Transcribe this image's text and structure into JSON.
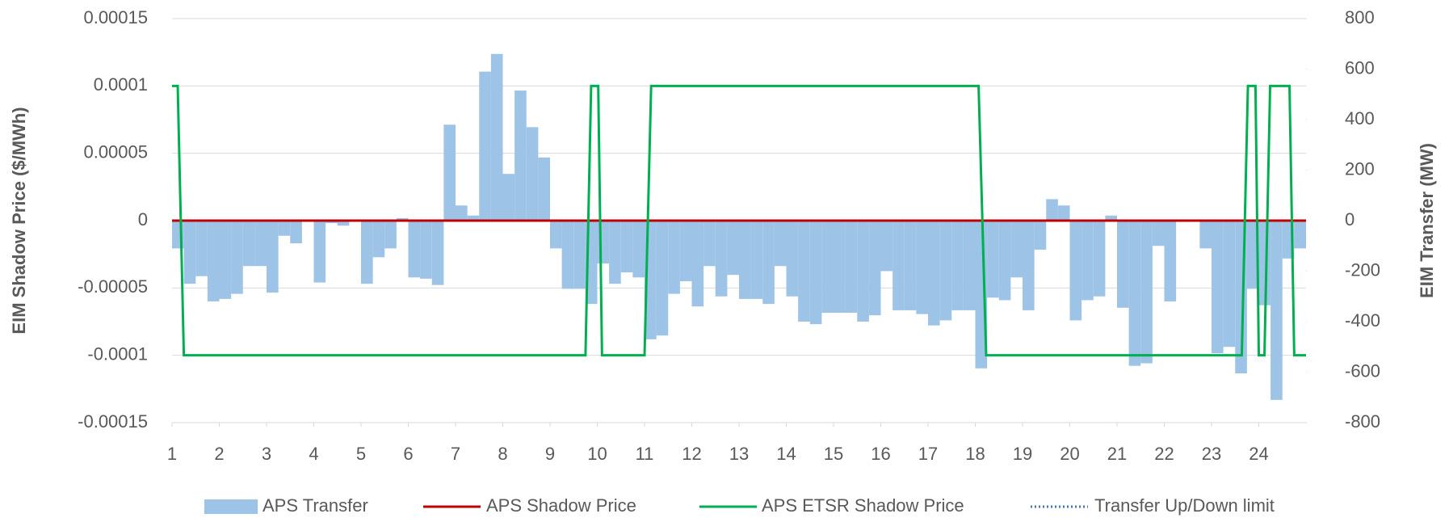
{
  "chart_data": {
    "type": "bar",
    "y_label": "EIM Shadow  Price ($/MWh)",
    "y2_label": "EIM Transfer (MW)",
    "xlim": [
      1,
      25
    ],
    "xticks": [
      1,
      2,
      3,
      4,
      5,
      6,
      7,
      8,
      9,
      10,
      11,
      12,
      13,
      14,
      15,
      16,
      17,
      18,
      19,
      20,
      21,
      22,
      23,
      24
    ],
    "ylim": [
      -0.00015,
      0.00015
    ],
    "yticks": [
      -0.00015,
      -0.0001,
      -5e-05,
      0,
      5e-05,
      0.0001,
      0.00015
    ],
    "y2lim": [
      -800,
      800
    ],
    "y2ticks": [
      -800,
      -600,
      -400,
      -200,
      0,
      200,
      400,
      600,
      800
    ],
    "grid": true,
    "legend": "bottom",
    "series": [
      {
        "name": "APS Transfer",
        "type": "bar",
        "axis": "y2",
        "color": "#9dc3e6",
        "x": [
          1,
          1.25,
          1.5,
          1.75,
          2,
          2.25,
          2.5,
          2.75,
          3,
          3.25,
          3.5,
          3.75,
          4,
          4.25,
          4.5,
          4.75,
          5,
          5.25,
          5.5,
          5.75,
          6,
          6.25,
          6.5,
          6.75,
          7,
          7.25,
          7.5,
          7.75,
          8,
          8.25,
          8.5,
          8.75,
          9,
          9.25,
          9.5,
          9.75,
          10,
          10.25,
          10.5,
          10.75,
          11,
          11.25,
          11.5,
          11.75,
          12,
          12.25,
          12.5,
          12.75,
          13,
          13.25,
          13.5,
          13.75,
          14,
          14.25,
          14.5,
          14.75,
          15,
          15.25,
          15.5,
          15.75,
          16,
          16.25,
          16.5,
          16.75,
          17,
          17.25,
          17.5,
          17.75,
          18,
          18.25,
          18.5,
          18.75,
          19,
          19.25,
          19.5,
          19.75,
          20,
          20.25,
          20.5,
          20.75,
          21,
          21.25,
          21.5,
          21.75,
          22,
          22.25,
          22.5,
          22.75,
          23,
          23.25,
          23.5,
          23.75,
          24,
          24.25,
          24.5,
          24.75
        ],
        "values": [
          -110,
          -250,
          -220,
          -320,
          -310,
          -290,
          -180,
          -180,
          -285,
          -60,
          -90,
          0,
          -245,
          -10,
          -20,
          0,
          -250,
          -145,
          -110,
          10,
          -225,
          -230,
          -255,
          380,
          60,
          20,
          590,
          660,
          185,
          515,
          370,
          250,
          -110,
          -270,
          -270,
          -330,
          -170,
          -250,
          -205,
          -225,
          -470,
          -455,
          -290,
          -240,
          -340,
          -180,
          -300,
          -215,
          -310,
          -310,
          -330,
          -180,
          -300,
          -400,
          -410,
          -365,
          -365,
          -365,
          -400,
          -375,
          -200,
          -355,
          -355,
          -370,
          -415,
          -395,
          -355,
          -355,
          -585,
          -305,
          -315,
          -225,
          -355,
          -115,
          85,
          60,
          -395,
          -315,
          -300,
          20,
          -345,
          -575,
          -565,
          -100,
          -320,
          0,
          0,
          -110,
          -525,
          -500,
          -605,
          -270,
          -335,
          -710,
          -150,
          -110
        ]
      },
      {
        "name": "APS Shadow Price",
        "type": "line",
        "axis": "y",
        "color": "#c00000",
        "x": [
          1,
          25
        ],
        "values": [
          0,
          0
        ]
      },
      {
        "name": "APS ETSR Shadow Price",
        "type": "line",
        "axis": "y",
        "color": "#00b050",
        "x": [
          1,
          1.12,
          1.25,
          9.75,
          9.87,
          10.02,
          10.1,
          11.0,
          11.14,
          18.07,
          18.23,
          23.64,
          23.77,
          23.93,
          24.0,
          24.12,
          24.24,
          24.65,
          24.75,
          25
        ],
        "values": [
          0.0001,
          0.0001,
          -0.0001,
          -0.0001,
          0.0001,
          0.0001,
          -0.0001,
          -0.0001,
          0.0001,
          0.0001,
          -0.0001,
          -0.0001,
          0.0001,
          0.0001,
          -0.0001,
          -0.0001,
          0.0001,
          0.0001,
          -0.0001,
          -0.0001
        ]
      },
      {
        "name": "Transfer Up/Down limit",
        "type": "line",
        "axis": "y2",
        "color": "#4472c4",
        "dash": "dotted",
        "x": [],
        "values": []
      }
    ]
  }
}
